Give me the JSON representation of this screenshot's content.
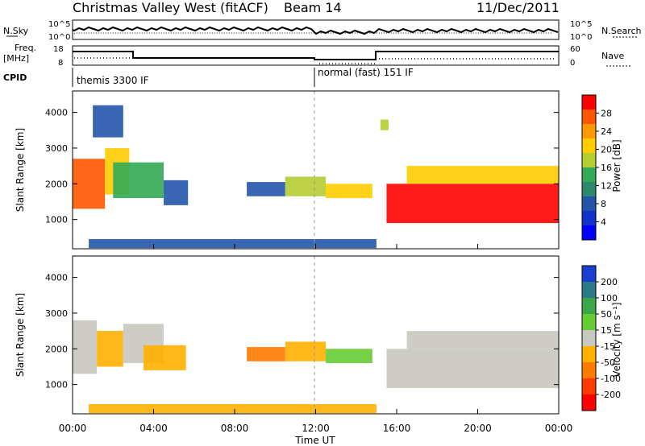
{
  "header": {
    "title": "Christmas Valley West (fitACF)",
    "beam": "Beam 14",
    "date": "11/Dec/2011"
  },
  "strip_labels": {
    "nsky": "N.Sky",
    "nsearch": "N.Search",
    "freq": "Freq.",
    "freq_unit": "[MHz]",
    "nave": "Nave",
    "cpid": "CPID",
    "cpid_left": "themis 3300 IF",
    "cpid_right": "normal (fast) 151 IF",
    "noise_ticks_left": [
      "10^5",
      "10^0"
    ],
    "noise_ticks_right": [
      "10^5",
      "10^0"
    ],
    "freq_ticks": [
      "18",
      "8"
    ],
    "nave_ticks": [
      "60",
      "0"
    ]
  },
  "axes": {
    "ylabel": "Slant Range [km]",
    "xlabel": "Time UT",
    "y_ticks": [
      "4000",
      "3000",
      "2000",
      "1000"
    ],
    "x_ticks": [
      "00:00",
      "04:00",
      "08:00",
      "12:00",
      "16:00",
      "20:00",
      "00:00"
    ]
  },
  "colorbars": {
    "power": {
      "label": "Power [dB]",
      "ticks": [
        "28",
        "24",
        "20",
        "16",
        "12",
        "8",
        "4"
      ],
      "colors": [
        "#ff0000",
        "#ff5500",
        "#ff9900",
        "#ffcc00",
        "#b5cc33",
        "#33aa55",
        "#2a8a6a",
        "#2255aa",
        "#1133cc",
        "#0000ff"
      ]
    },
    "velocity": {
      "label": "Velocity [m s⁻¹]",
      "ticks": [
        "200",
        "100",
        "50",
        "15",
        "-15",
        "-50",
        "-100",
        "-200"
      ],
      "colors": [
        "#1a3fd0",
        "#2a7a8a",
        "#3aa84a",
        "#66cc33",
        "#c8c8c0",
        "#ffb000",
        "#ff7a00",
        "#ff3a00",
        "#ff0000"
      ]
    }
  },
  "chart_data": [
    {
      "type": "heatmap",
      "title": "Power",
      "xlabel": "Time UT",
      "ylabel": "Slant Range [km]",
      "xlim": [
        "00:00",
        "24:00"
      ],
      "ylim": [
        180,
        4600
      ],
      "colorbar_label": "Power [dB]",
      "colorbar_range": [
        0,
        30
      ],
      "regions": [
        {
          "t": [
            0.0,
            1.6
          ],
          "r": [
            1300,
            2700
          ],
          "value": 26
        },
        {
          "t": [
            1.6,
            2.8
          ],
          "r": [
            1700,
            3000
          ],
          "value": 20
        },
        {
          "t": [
            2.0,
            4.5
          ],
          "r": [
            1600,
            2600
          ],
          "value": 12
        },
        {
          "t": [
            4.5,
            5.7
          ],
          "r": [
            1400,
            2100
          ],
          "value": 8
        },
        {
          "t": [
            8.6,
            10.5
          ],
          "r": [
            1650,
            2050
          ],
          "value": 8
        },
        {
          "t": [
            10.5,
            12.5
          ],
          "r": [
            1650,
            2200
          ],
          "value": 16
        },
        {
          "t": [
            12.5,
            14.8
          ],
          "r": [
            1600,
            2000
          ],
          "value": 20
        },
        {
          "t": [
            15.5,
            24.0
          ],
          "r": [
            900,
            2000
          ],
          "value": 28
        },
        {
          "t": [
            16.5,
            24.0
          ],
          "r": [
            2000,
            2500
          ],
          "value": 18
        },
        {
          "t": [
            0.8,
            15.0
          ],
          "r": [
            200,
            450
          ],
          "value": 6
        },
        {
          "t": [
            1.0,
            2.5
          ],
          "r": [
            3300,
            4200
          ],
          "value": 6
        },
        {
          "t": [
            15.2,
            15.6
          ],
          "r": [
            3500,
            3800
          ],
          "value": 16
        }
      ]
    },
    {
      "type": "heatmap",
      "title": "Velocity",
      "xlabel": "Time UT",
      "ylabel": "Slant Range [km]",
      "xlim": [
        "00:00",
        "24:00"
      ],
      "ylim": [
        180,
        4600
      ],
      "colorbar_label": "Velocity [m s⁻¹]",
      "colorbar_range": [
        -250,
        250
      ],
      "regions": [
        {
          "t": [
            0.0,
            1.2
          ],
          "r": [
            1300,
            2800
          ],
          "value": 0
        },
        {
          "t": [
            1.2,
            2.5
          ],
          "r": [
            1500,
            2500
          ],
          "value": -60
        },
        {
          "t": [
            2.5,
            4.5
          ],
          "r": [
            1600,
            2700
          ],
          "value": 0
        },
        {
          "t": [
            3.5,
            5.6
          ],
          "r": [
            1400,
            2100
          ],
          "value": -60
        },
        {
          "t": [
            8.6,
            10.5
          ],
          "r": [
            1650,
            2050
          ],
          "value": -120
        },
        {
          "t": [
            10.5,
            12.5
          ],
          "r": [
            1650,
            2200
          ],
          "value": -60
        },
        {
          "t": [
            12.5,
            14.8
          ],
          "r": [
            1600,
            2000
          ],
          "value": 40
        },
        {
          "t": [
            15.5,
            24.0
          ],
          "r": [
            900,
            2000
          ],
          "value": 0
        },
        {
          "t": [
            16.5,
            24.0
          ],
          "r": [
            2000,
            2500
          ],
          "value": 0
        },
        {
          "t": [
            0.8,
            15.0
          ],
          "r": [
            200,
            450
          ],
          "value": -30
        }
      ]
    }
  ]
}
